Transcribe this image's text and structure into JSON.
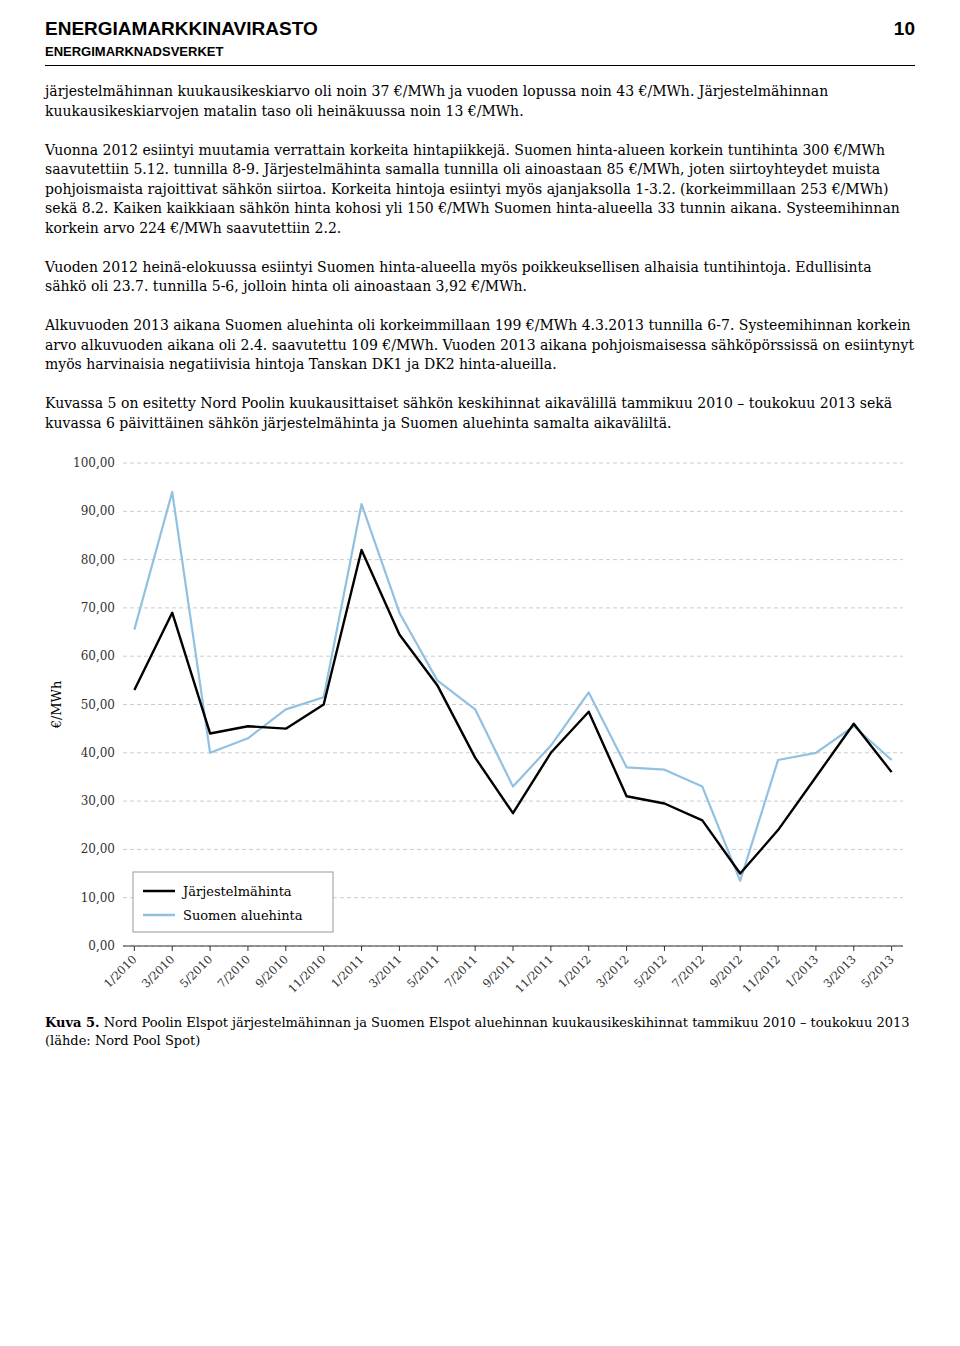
{
  "header": {
    "title": "ENERGIAMARKKINAVIRASTO",
    "page_number": "10",
    "subtitle": "ENERGIMARKNADSVERKET"
  },
  "body_paragraphs": [
    "järjestelmähinnan kuukausikeskiarvo oli noin 37 €/MWh ja vuoden lopussa noin 43 €/MWh. Järjestelmähinnan kuukausikeskiarvojen matalin taso oli heinäkuussa noin 13 €/MWh.",
    "Vuonna 2012 esiintyi muutamia verrattain korkeita hintapiikkejä. Suomen hinta-alueen korkein tuntihinta 300 €/MWh saavutettiin 5.12. tunnilla 8-9. Järjestelmähinta samalla tunnilla oli ainoastaan 85 €/MWh, joten siirtoyhteydet muista pohjoismaista rajoittivat sähkön siirtoa. Korkeita hintoja esiintyi myös ajanjaksolla 1-3.2. (korkeimmillaan 253 €/MWh) sekä 8.2. Kaiken kaikkiaan sähkön hinta kohosi yli 150 €/MWh Suomen hinta-alueella 33 tunnin aikana. Systeemihinnan korkein arvo 224 €/MWh saavutettiin 2.2.",
    "Vuoden 2012 heinä-elokuussa esiintyi Suomen hinta-alueella myös poikkeuksellisen alhaisia tuntihintoja. Edullisinta sähkö oli 23.7. tunnilla 5-6, jolloin hinta oli ainoastaan 3,92 €/MWh.",
    "Alkuvuoden 2013 aikana Suomen aluehinta oli korkeimmillaan 199 €/MWh 4.3.2013 tunnilla 6-7. Systeemihinnan korkein arvo alkuvuoden aikana oli 2.4. saavutettu 109 €/MWh. Vuoden 2013 aikana pohjoismaisessa sähköpörssissä on esiintynyt myös harvinaisia negatiivisia hintoja Tanskan DK1 ja DK2 hinta-alueilla.",
    "Kuvassa 5 on esitetty Nord Poolin kuukausittaiset sähkön keskihinnat aikavälillä tammikuu 2010 – toukokuu 2013 sekä kuvassa 6 päivittäinen sähkön järjestelmähinta ja Suomen aluehinta samalta aikaväliltä."
  ],
  "caption": {
    "label": "Kuva 5.",
    "text": " Nord Poolin Elspot järjestelmähinnan ja Suomen Elspot aluehinnan kuukausikeskihinnat tammikuu 2010 – toukokuu 2013 (lähde: Nord Pool Spot)"
  },
  "chart_data": {
    "type": "line",
    "y_label": "€/MWh",
    "categories": [
      "1/2010",
      "3/2010",
      "5/2010",
      "7/2010",
      "9/2010",
      "11/2010",
      "1/2011",
      "3/2011",
      "5/2011",
      "7/2011",
      "9/2011",
      "11/2011",
      "1/2012",
      "3/2012",
      "5/2012",
      "7/2012",
      "9/2012",
      "11/2012",
      "1/2013",
      "3/2013",
      "5/2013"
    ],
    "series": [
      {
        "name": "Järjestelmähinta",
        "color": "#000000",
        "values": [
          53.0,
          69.0,
          44.0,
          45.5,
          45.0,
          50.0,
          82.0,
          64.5,
          54.0,
          39.0,
          27.5,
          40.0,
          48.5,
          31.0,
          29.5,
          26.0,
          15.0,
          24.0,
          35.0,
          46.0,
          36.0
        ]
      },
      {
        "name": "Suomen aluehinta",
        "color": "#92C0E0",
        "values": [
          65.5,
          94.0,
          40.0,
          43.0,
          49.0,
          51.5,
          91.5,
          69.0,
          55.0,
          49.0,
          33.0,
          41.5,
          52.5,
          37.0,
          36.5,
          33.0,
          13.5,
          38.5,
          40.0,
          45.5,
          38.5
        ]
      }
    ],
    "ylim": [
      0,
      100
    ],
    "yticks": [
      {
        "value": 0,
        "label": "0,00"
      },
      {
        "value": 10,
        "label": "10,00"
      },
      {
        "value": 20,
        "label": "20,00"
      },
      {
        "value": 30,
        "label": "30,00"
      },
      {
        "value": 40,
        "label": "40,00"
      },
      {
        "value": 50,
        "label": "50,00"
      },
      {
        "value": 60,
        "label": "60,00"
      },
      {
        "value": 70,
        "label": "70,00"
      },
      {
        "value": 80,
        "label": "80,00"
      },
      {
        "value": 90,
        "label": "90,00"
      },
      {
        "value": 100,
        "label": "100,00"
      }
    ],
    "grid": true,
    "legend": "lower left"
  }
}
